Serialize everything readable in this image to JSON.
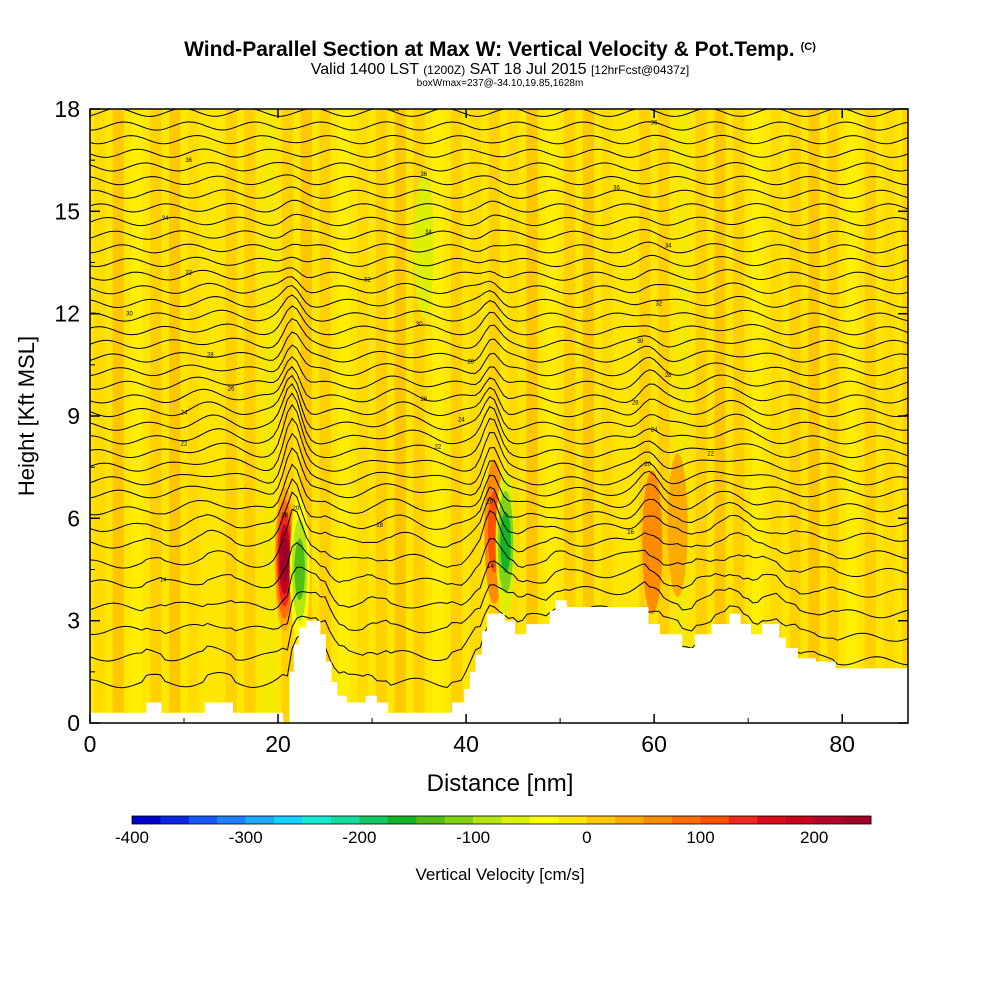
{
  "header": {
    "title": "Wind-Parallel Section at Max W: Vertical Velocity & Pot.Temp.",
    "copyright": "(C)",
    "valid_a": "Valid 1400 LST",
    "valid_b": "(1200Z)",
    "valid_c": "SAT 18 Jul 2015",
    "valid_d": "[12hrFcst@0437z]",
    "box_info": "boxWmax=237@-34.10,19.85,1628m"
  },
  "chart_data": {
    "type": "heatmap",
    "xlabel": "Distance [nm]",
    "ylabel": "Height [Kft MSL]",
    "xlim": [
      0,
      87
    ],
    "ylim": [
      0,
      18
    ],
    "x_ticks": [
      "0",
      "20",
      "40",
      "60",
      "80"
    ],
    "y_ticks": [
      "0",
      "3",
      "6",
      "9",
      "12",
      "15",
      "18"
    ],
    "colorbar": {
      "label": "Vertical Velocity [cm/s]",
      "range": [
        -400,
        250
      ],
      "step": 25,
      "ticks": [
        "-400",
        "-300",
        "-200",
        "-100",
        "0",
        "100",
        "200"
      ],
      "colors": [
        "#0000cd",
        "#0a28e6",
        "#145aff",
        "#1e82ff",
        "#1eaaff",
        "#14d2ff",
        "#14ebd2",
        "#14dca0",
        "#14c864",
        "#14b428",
        "#50be14",
        "#82d214",
        "#b4e614",
        "#dcf000",
        "#ffff00",
        "#ffe600",
        "#ffc800",
        "#ffaa00",
        "#ff8c00",
        "#ff6e00",
        "#ff5000",
        "#f0281e",
        "#dc0a1e",
        "#c8001e",
        "#b40028",
        "#a00028"
      ]
    },
    "updraft_cores_w_cm_s": [
      {
        "x": 20.7,
        "z_kft": 4.8,
        "w": 237
      },
      {
        "x": 43.0,
        "z_kft": 5.6,
        "w": 110
      },
      {
        "x": 59.8,
        "z_kft": 5.3,
        "w": 60
      },
      {
        "x": 62.5,
        "z_kft": 5.8,
        "w": 40
      }
    ],
    "downdraft_cores_w_cm_s": [
      {
        "x": 22.3,
        "z_kft": 4.5,
        "w": -150
      },
      {
        "x": 44.2,
        "z_kft": 5.3,
        "w": -160
      },
      {
        "x": 35.5,
        "z_kft": 14.0,
        "w": -60
      }
    ],
    "contour_labels": [
      {
        "x": 32.5,
        "z_kft": 18.0,
        "label": "38"
      },
      {
        "x": 60,
        "z_kft": 17.6,
        "label": "36"
      },
      {
        "x": 10.5,
        "z_kft": 16.5,
        "label": "36"
      },
      {
        "x": 35.5,
        "z_kft": 16.1,
        "label": "36"
      },
      {
        "x": 56,
        "z_kft": 15.7,
        "label": "36"
      },
      {
        "x": 8,
        "z_kft": 14.8,
        "label": "34"
      },
      {
        "x": 36,
        "z_kft": 14.4,
        "label": "34"
      },
      {
        "x": 61.5,
        "z_kft": 14.0,
        "label": "34"
      },
      {
        "x": 10.5,
        "z_kft": 13.2,
        "label": "32"
      },
      {
        "x": 29.5,
        "z_kft": 13.0,
        "label": "32"
      },
      {
        "x": 60.5,
        "z_kft": 12.3,
        "label": "32"
      },
      {
        "x": 4.2,
        "z_kft": 12.0,
        "label": "30"
      },
      {
        "x": 35,
        "z_kft": 11.7,
        "label": "30"
      },
      {
        "x": 58.5,
        "z_kft": 11.2,
        "label": "30"
      },
      {
        "x": 12.8,
        "z_kft": 10.8,
        "label": "28"
      },
      {
        "x": 40.5,
        "z_kft": 10.6,
        "label": "28"
      },
      {
        "x": 61.5,
        "z_kft": 10.2,
        "label": "28"
      },
      {
        "x": 15,
        "z_kft": 9.8,
        "label": "26"
      },
      {
        "x": 35.5,
        "z_kft": 9.5,
        "label": "26"
      },
      {
        "x": 58,
        "z_kft": 9.4,
        "label": "26"
      },
      {
        "x": 10,
        "z_kft": 9.1,
        "label": "24"
      },
      {
        "x": 39.5,
        "z_kft": 8.9,
        "label": "24"
      },
      {
        "x": 60,
        "z_kft": 8.6,
        "label": "24"
      },
      {
        "x": 10,
        "z_kft": 8.2,
        "label": "22"
      },
      {
        "x": 37,
        "z_kft": 8.1,
        "label": "22"
      },
      {
        "x": 66,
        "z_kft": 7.9,
        "label": "22"
      },
      {
        "x": 59.3,
        "z_kft": 7.6,
        "label": "20"
      },
      {
        "x": 42.5,
        "z_kft": 6.5,
        "label": "20"
      },
      {
        "x": 21.9,
        "z_kft": 6.3,
        "label": "20"
      },
      {
        "x": 20.7,
        "z_kft": 6.1,
        "label": "18"
      },
      {
        "x": 30.8,
        "z_kft": 5.8,
        "label": "18"
      },
      {
        "x": 57.5,
        "z_kft": 5.6,
        "label": "16"
      },
      {
        "x": 42.6,
        "z_kft": 4.6,
        "label": "14"
      },
      {
        "x": 7.8,
        "z_kft": 4.2,
        "label": "14"
      }
    ],
    "terrain_kft": [
      [
        0,
        0.3
      ],
      [
        6,
        0.3
      ],
      [
        6,
        0.6
      ],
      [
        7.6,
        0.6
      ],
      [
        7.6,
        0.3
      ],
      [
        12.2,
        0.3
      ],
      [
        12.2,
        0.6
      ],
      [
        15.2,
        0.6
      ],
      [
        15.2,
        0.3
      ],
      [
        20.5,
        0.3
      ],
      [
        20.6,
        0
      ],
      [
        21.2,
        0
      ],
      [
        21.2,
        1.5
      ],
      [
        21.7,
        1.5
      ],
      [
        21.7,
        2.3
      ],
      [
        22.2,
        2.3
      ],
      [
        22.2,
        2.8
      ],
      [
        23,
        2.8
      ],
      [
        23,
        3.0
      ],
      [
        24.5,
        3.0
      ],
      [
        24.5,
        2.6
      ],
      [
        25.1,
        2.6
      ],
      [
        25.1,
        1.8
      ],
      [
        25.7,
        1.8
      ],
      [
        25.7,
        1.2
      ],
      [
        26.3,
        1.2
      ],
      [
        26.3,
        0.8
      ],
      [
        27.3,
        0.8
      ],
      [
        27.3,
        0.6
      ],
      [
        29.3,
        0.6
      ],
      [
        29.3,
        0.8
      ],
      [
        30.5,
        0.8
      ],
      [
        30.5,
        0.6
      ],
      [
        31.7,
        0.6
      ],
      [
        31.7,
        0.3
      ],
      [
        38.5,
        0.3
      ],
      [
        38.5,
        0.6
      ],
      [
        39.8,
        0.6
      ],
      [
        39.8,
        1.0
      ],
      [
        40.4,
        1.0
      ],
      [
        40.4,
        1.5
      ],
      [
        41,
        1.5
      ],
      [
        41,
        2.0
      ],
      [
        41.7,
        2.0
      ],
      [
        41.7,
        2.7
      ],
      [
        42.2,
        2.7
      ],
      [
        42.2,
        3.2
      ],
      [
        44.1,
        3.2
      ],
      [
        44.1,
        3.0
      ],
      [
        45.2,
        3.0
      ],
      [
        45.2,
        2.6
      ],
      [
        46.4,
        2.6
      ],
      [
        46.4,
        2.9
      ],
      [
        48.9,
        2.9
      ],
      [
        48.9,
        3.3
      ],
      [
        49.5,
        3.3
      ],
      [
        49.5,
        3.6
      ],
      [
        50.7,
        3.6
      ],
      [
        50.7,
        3.4
      ],
      [
        59.4,
        3.4
      ],
      [
        59.4,
        2.9
      ],
      [
        60.6,
        2.9
      ],
      [
        60.6,
        2.6
      ],
      [
        63,
        2.6
      ],
      [
        63,
        2.2
      ],
      [
        64.3,
        2.2
      ],
      [
        64.3,
        2.6
      ],
      [
        66.1,
        2.6
      ],
      [
        66.1,
        2.9
      ],
      [
        68,
        2.9
      ],
      [
        68,
        3.2
      ],
      [
        69.2,
        3.2
      ],
      [
        69.2,
        2.9
      ],
      [
        70.3,
        2.9
      ],
      [
        70.3,
        2.6
      ],
      [
        71.5,
        2.6
      ],
      [
        71.5,
        2.9
      ],
      [
        73.3,
        2.9
      ],
      [
        73.3,
        2.5
      ],
      [
        74,
        2.5
      ],
      [
        74,
        2.2
      ],
      [
        75.3,
        2.2
      ],
      [
        75.3,
        1.9
      ],
      [
        77.2,
        1.9
      ],
      [
        77.2,
        1.8
      ],
      [
        79.3,
        1.8
      ],
      [
        79.3,
        1.6
      ],
      [
        87,
        1.6
      ]
    ],
    "contour_levels_kft": [
      1.0,
      1.8,
      2.6,
      3.3,
      4.0,
      4.6,
      5.2,
      5.7,
      6.2,
      6.7,
      7.1,
      7.5,
      7.9,
      8.3,
      8.7,
      9.1,
      9.5,
      9.9,
      10.3,
      10.7,
      11.1,
      11.5,
      11.9,
      12.3,
      12.7,
      13.1,
      13.5,
      13.9,
      14.3,
      14.7,
      15.1,
      15.5,
      15.9,
      16.3,
      16.7,
      17.1,
      17.5,
      17.9
    ]
  }
}
